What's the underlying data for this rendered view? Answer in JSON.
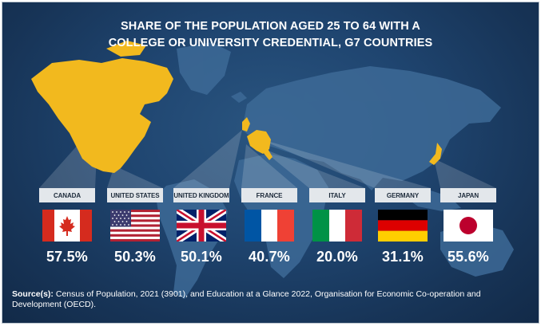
{
  "chart_data": {
    "type": "bar",
    "title_lines": [
      "SHARE OF THE POPULATION  AGED 25 TO 64 WITH A",
      "COLLEGE OR UNIVERSITY CREDENTIAL, G7 COUNTRIES"
    ],
    "categories": [
      "CANADA",
      "UNITED STATES",
      "UNITED KINGDOM",
      "FRANCE",
      "ITALY",
      "GERMANY",
      "JAPAN"
    ],
    "value_labels": [
      "57.5%",
      "50.3%",
      "50.1%",
      "40.7%",
      "20.0%",
      "31.1%",
      "55.6%"
    ],
    "values": [
      57.5,
      50.3,
      50.1,
      40.7,
      20.0,
      31.1,
      55.6
    ],
    "unit": "%",
    "flags": [
      "canada-flag-icon",
      "usa-flag-icon",
      "uk-flag-icon",
      "france-flag-icon",
      "italy-flag-icon",
      "germany-flag-icon",
      "japan-flag-icon"
    ],
    "source_label": "Source(s):",
    "source_text": " Census of Population, 2021 (3901), and Education at a Glance 2022, Organisation for Economic Co-operation and Development (OECD).",
    "colors": {
      "background": "#1d3a5d",
      "land": "#3d6a97",
      "highlight": "#f2b91e",
      "label_bg": "#e3e7eb"
    }
  }
}
